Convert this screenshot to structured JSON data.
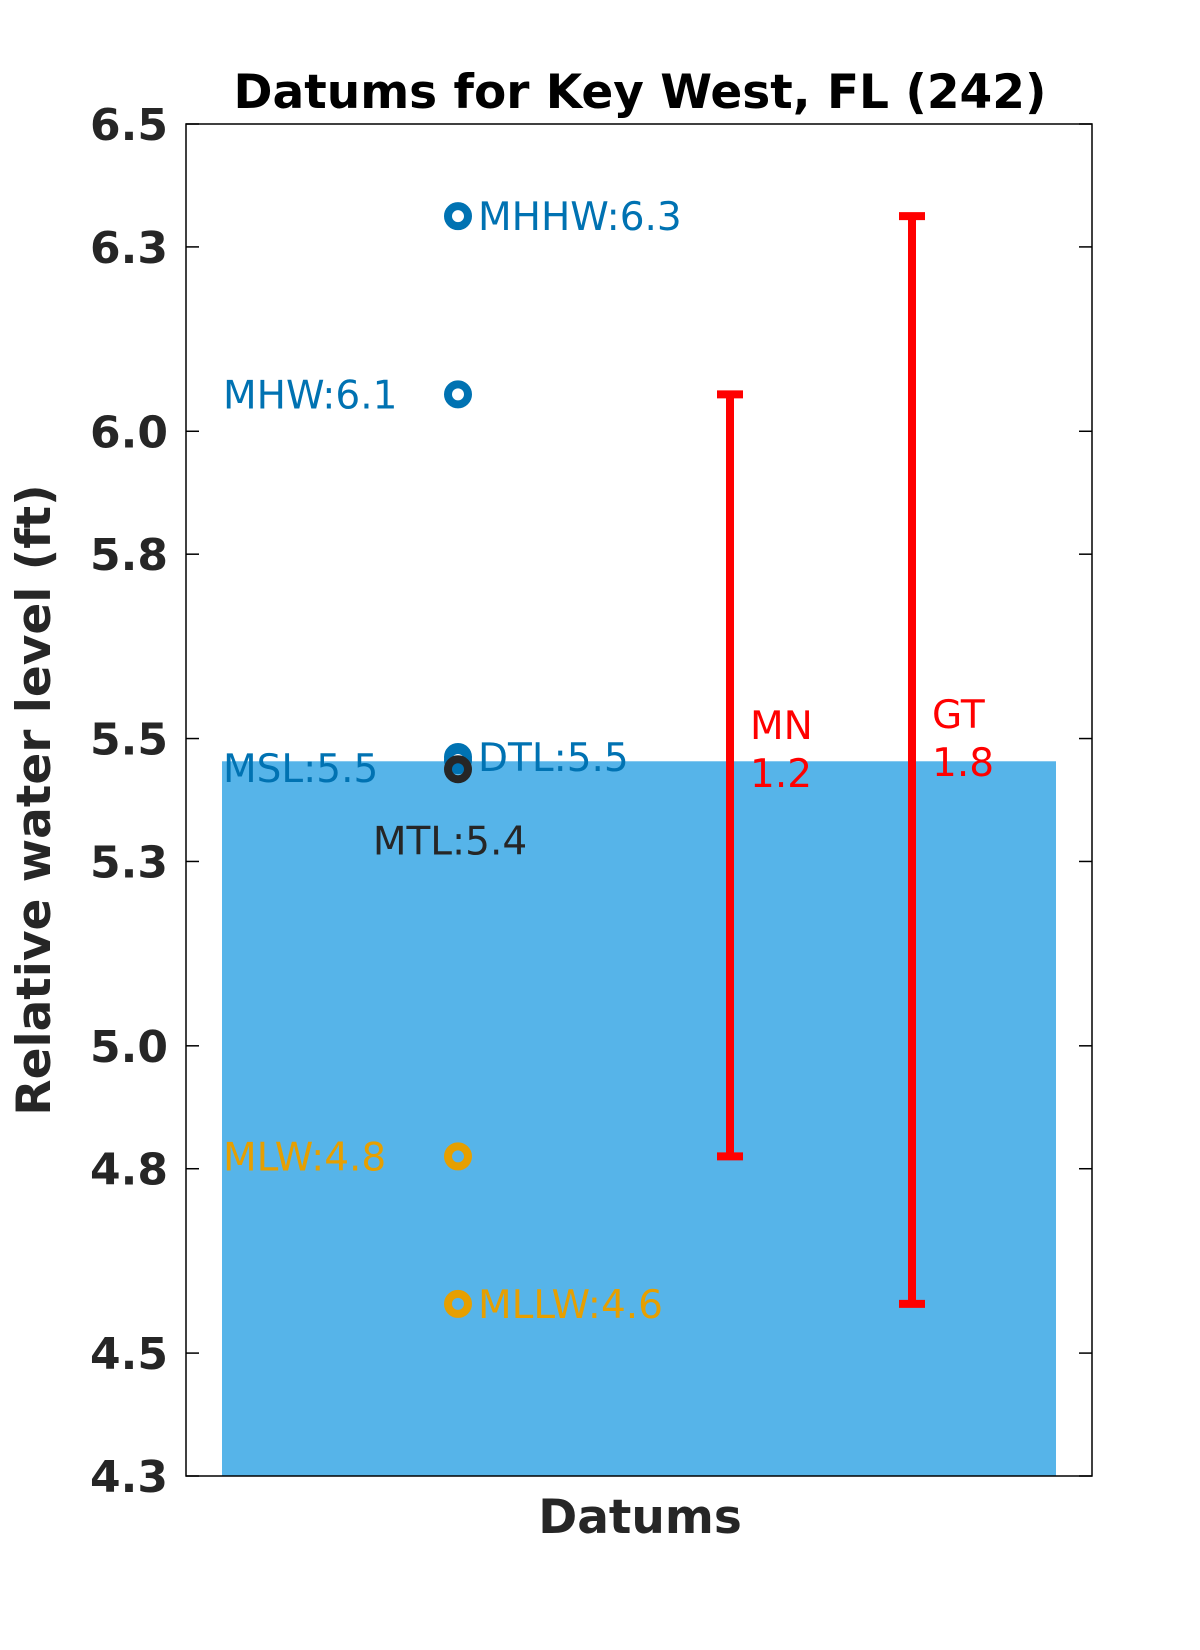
{
  "chart_data": {
    "type": "scatter",
    "title": "Datums for Key West, FL (242)",
    "xlabel": "Datums",
    "ylabel": "Relative water level (ft)",
    "ylim": [
      4.3,
      6.5
    ],
    "yticks": [
      4.3,
      4.5,
      4.8,
      5.0,
      5.3,
      5.5,
      5.8,
      6.0,
      6.3,
      6.5
    ],
    "ytick_labels": [
      "4.3",
      "4.5",
      "4.8",
      "5.0",
      "5.3",
      "5.5",
      "5.8",
      "6.0",
      "6.3",
      "6.5"
    ],
    "grid": false,
    "bar": {
      "value": 5.463,
      "color": "#56B4E9"
    },
    "points": [
      {
        "name": "MHHW",
        "value": 6.35,
        "label": "MHHW:6.3",
        "color": "#0072B2",
        "label_side": "right"
      },
      {
        "name": "MHW",
        "value": 6.06,
        "label": "MHW:6.1",
        "color": "#0072B2",
        "label_side": "left"
      },
      {
        "name": "DTL",
        "value": 5.47,
        "label": "DTL:5.5",
        "color": "#0072B2",
        "label_side": "right"
      },
      {
        "name": "MSL",
        "value": 5.465,
        "label": "MSL:5.5",
        "color": "#0072B2",
        "label_side": "left"
      },
      {
        "name": "MTL",
        "value": 5.45,
        "label": "MTL:5.4",
        "color": "#262626",
        "label_side": "below"
      },
      {
        "name": "MLW",
        "value": 4.82,
        "label": "MLW:4.8",
        "color": "#E69F00",
        "label_side": "left"
      },
      {
        "name": "MLLW",
        "value": 4.58,
        "label": "MLLW:4.6",
        "color": "#E69F00",
        "label_side": "right"
      }
    ],
    "ranges": [
      {
        "name": "MN",
        "value_label": "1.2",
        "low": 4.82,
        "high": 6.06,
        "color": "#FF0000"
      },
      {
        "name": "GT",
        "value_label": "1.8",
        "low": 4.58,
        "high": 6.35,
        "color": "#FF0000"
      }
    ]
  }
}
